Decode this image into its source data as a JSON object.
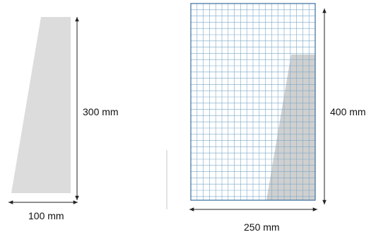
{
  "colors": {
    "shape_fill": "#dcdcdc",
    "grid_line": "#7aa7c7",
    "grid_border": "#3c6e9e",
    "dimension_line": "#222222",
    "text": "#111111"
  },
  "left_figure": {
    "height_label": "300 mm",
    "width_label": "100 mm"
  },
  "right_figure": {
    "height_label": "400 mm",
    "width_label": "250 mm"
  }
}
